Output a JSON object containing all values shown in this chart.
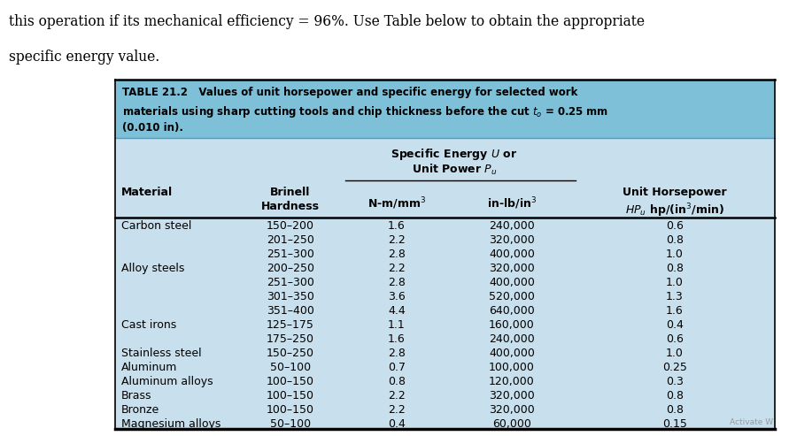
{
  "intro_text_line1": "this operation if its mechanical efficiency = 96%. Use Table below to obtain the appropriate",
  "intro_text_line2": "specific energy value.",
  "table_title_bold": "TABLE 21.2",
  "table_title_rest": "   Values of unit horsepower and specific energy for selected work",
  "table_title2": "materials using sharp cutting tools and chip thickness before the cut τ₀ = 0.25 mm",
  "table_title3": "(0.010 in).",
  "rows": [
    [
      "Carbon steel",
      "150–200",
      "1.6",
      "240,000",
      "0.6"
    ],
    [
      "",
      "201–250",
      "2.2",
      "320,000",
      "0.8"
    ],
    [
      "",
      "251–300",
      "2.8",
      "400,000",
      "1.0"
    ],
    [
      "Alloy steels",
      "200–250",
      "2.2",
      "320,000",
      "0.8"
    ],
    [
      "",
      "251–300",
      "2.8",
      "400,000",
      "1.0"
    ],
    [
      "",
      "301–350",
      "3.6",
      "520,000",
      "1.3"
    ],
    [
      "",
      "351–400",
      "4.4",
      "640,000",
      "1.6"
    ],
    [
      "Cast irons",
      "125–175",
      "1.1",
      "160,000",
      "0.4"
    ],
    [
      "",
      "175–250",
      "1.6",
      "240,000",
      "0.6"
    ],
    [
      "Stainless steel",
      "150–250",
      "2.8",
      "400,000",
      "1.0"
    ],
    [
      "Aluminum",
      "50–100",
      "0.7",
      "100,000",
      "0.25"
    ],
    [
      "Aluminum alloys",
      "100–150",
      "0.8",
      "120,000",
      "0.3"
    ],
    [
      "Brass",
      "100–150",
      "2.2",
      "320,000",
      "0.8"
    ],
    [
      "Bronze",
      "100–150",
      "2.2",
      "320,000",
      "0.8"
    ],
    [
      "Magnesium alloys",
      "50–100",
      "0.4",
      "60,000",
      "0.15"
    ]
  ],
  "title_bg": "#7dc0d8",
  "body_bg": "#c8e0ed",
  "outer_bg": "#ffffff",
  "line_color_dark": "#000000",
  "line_color_mid": "#5a9ab5"
}
